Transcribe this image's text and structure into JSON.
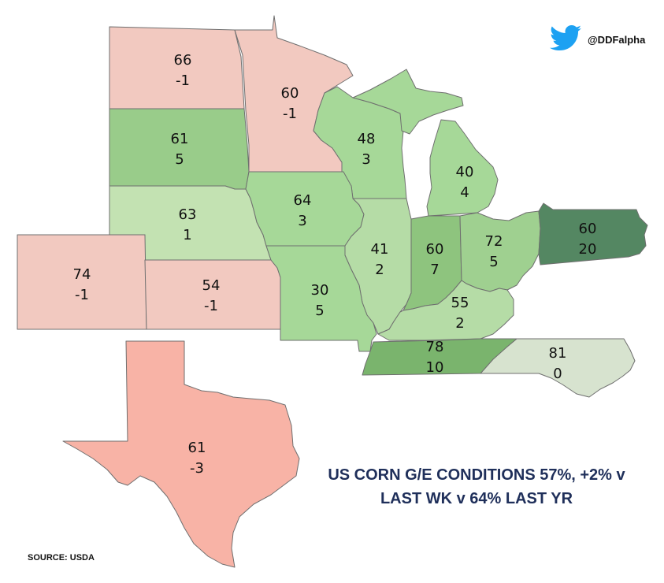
{
  "title_lines": [
    "US CORN G/E CONDITIONS 57%, +2% v",
    "LAST WK v 64% LAST YR"
  ],
  "source": "SOURCE: USDA",
  "handle": {
    "text": "@DDFalpha",
    "icon": "twitter-bird-icon",
    "icon_color": "#1da1f2"
  },
  "states": [
    {
      "id": "north-dakota",
      "value": "66",
      "change": "-1",
      "color": "#f2c9c0"
    },
    {
      "id": "minnesota",
      "value": "60",
      "change": "-1",
      "color": "#f2c9c0"
    },
    {
      "id": "south-dakota",
      "value": "61",
      "change": "5",
      "color": "#99cc8a"
    },
    {
      "id": "wisconsin",
      "value": "48",
      "change": "3",
      "color": "#a6d898"
    },
    {
      "id": "michigan",
      "value": "40",
      "change": "4",
      "color": "#a6d898"
    },
    {
      "id": "nebraska",
      "value": "63",
      "change": "1",
      "color": "#c3e2b2"
    },
    {
      "id": "iowa",
      "value": "64",
      "change": "3",
      "color": "#a6d898"
    },
    {
      "id": "illinois",
      "value": "41",
      "change": "2",
      "color": "#b5dca6"
    },
    {
      "id": "indiana",
      "value": "60",
      "change": "7",
      "color": "#8ec47e"
    },
    {
      "id": "ohio",
      "value": "72",
      "change": "5",
      "color": "#9fd090"
    },
    {
      "id": "pennsylvania",
      "value": "60",
      "change": "20",
      "color": "#548762"
    },
    {
      "id": "colorado",
      "value": "74",
      "change": "-1",
      "color": "#f2c9c0"
    },
    {
      "id": "kansas",
      "value": "54",
      "change": "-1",
      "color": "#f2c9c0"
    },
    {
      "id": "missouri",
      "value": "30",
      "change": "5",
      "color": "#a6d898"
    },
    {
      "id": "kentucky",
      "value": "55",
      "change": "2",
      "color": "#b5dca6"
    },
    {
      "id": "tennessee",
      "value": "78",
      "change": "10",
      "color": "#7ab46d"
    },
    {
      "id": "north-carolina",
      "value": "81",
      "change": "0",
      "color": "#d7e3cf"
    },
    {
      "id": "texas",
      "value": "61",
      "change": "-3",
      "color": "#f8b3a6"
    }
  ]
}
